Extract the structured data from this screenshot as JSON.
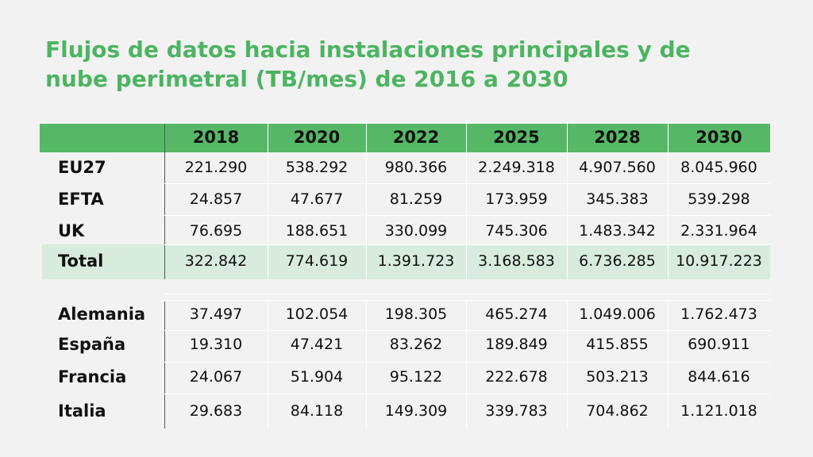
{
  "title": "Flujos de datos hacia instalaciones principales y de nube perimetral (TB/mes) de 2016 a 2030",
  "accent_color": "#56b866",
  "total_row_color": "#d8ecdd",
  "chart_data": {
    "type": "table",
    "title": "Flujos de datos hacia instalaciones principales y de nube perimetral (TB/mes) de 2016 a 2030",
    "columns": [
      "2018",
      "2020",
      "2022",
      "2025",
      "2028",
      "2030"
    ],
    "rows": [
      {
        "label": "EU27",
        "values": [
          "221.290",
          "538.292",
          "980.366",
          "2.249.318",
          "4.907.560",
          "8.045.960"
        ]
      },
      {
        "label": "EFTA",
        "values": [
          "24.857",
          "47.677",
          "81.259",
          "173.959",
          "345.383",
          "539.298"
        ]
      },
      {
        "label": "UK",
        "values": [
          "76.695",
          "188.651",
          "330.099",
          "745.306",
          "1.483.342",
          "2.331.964"
        ]
      },
      {
        "label": "Total",
        "values": [
          "322.842",
          "774.619",
          "1.391.723",
          "3.168.583",
          "6.736.285",
          "10.917.223"
        ]
      },
      {
        "label": "Alemania",
        "values": [
          "37.497",
          "102.054",
          "198.305",
          "465.274",
          "1.049.006",
          "1.762.473"
        ]
      },
      {
        "label": "España",
        "values": [
          "19.310",
          "47.421",
          "83.262",
          "189.849",
          "415.855",
          "690.911"
        ]
      },
      {
        "label": "Francia",
        "values": [
          "24.067",
          "51.904",
          "95.122",
          "222.678",
          "503.213",
          "844.616"
        ]
      },
      {
        "label": "Italia",
        "values": [
          "29.683",
          "84.118",
          "149.309",
          "339.783",
          "704.862",
          "1.121.018"
        ]
      }
    ]
  }
}
